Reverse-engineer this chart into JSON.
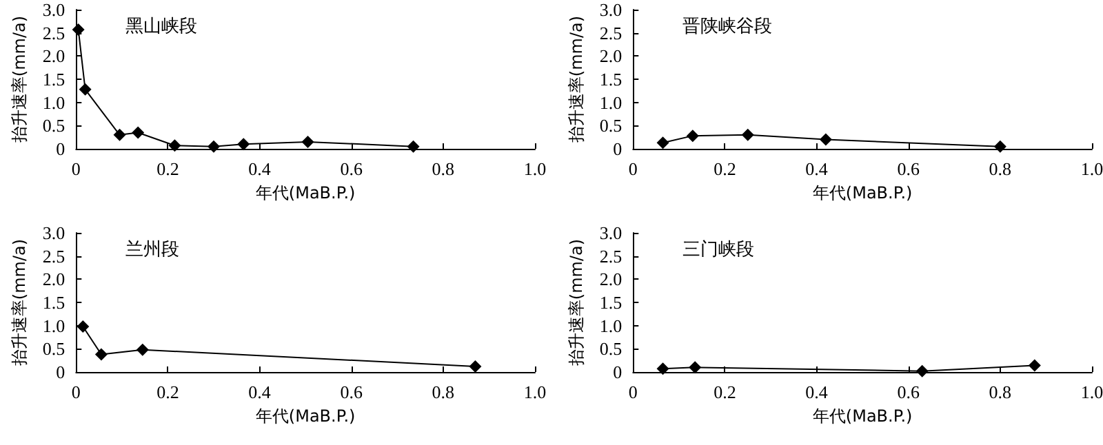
{
  "chart_data": [
    {
      "type": "line",
      "title": "黑山峡段",
      "xlabel": "年代(MaB.P.)",
      "ylabel": "抬升速率(mm/a)",
      "x": [
        0.005,
        0.02,
        0.095,
        0.135,
        0.215,
        0.3,
        0.365,
        0.505,
        0.735
      ],
      "values": [
        2.57,
        1.28,
        0.3,
        0.35,
        0.07,
        0.05,
        0.1,
        0.15,
        0.05
      ],
      "color": "#000000",
      "xlim": [
        0,
        1
      ],
      "xticks": [
        {
          "value": 0,
          "label": "0"
        },
        {
          "value": 0.2,
          "label": "0.2"
        },
        {
          "value": 0.4,
          "label": "0.4"
        },
        {
          "value": 0.6,
          "label": "0.6"
        },
        {
          "value": 0.8,
          "label": "0.8"
        },
        {
          "value": 1,
          "label": "1.0"
        }
      ],
      "ylim": [
        0,
        3
      ],
      "yticks": [
        {
          "value": 0,
          "label": "0"
        },
        {
          "value": 0.5,
          "label": "0.5"
        },
        {
          "value": 1,
          "label": "1.0"
        },
        {
          "value": 1.5,
          "label": "1.5"
        },
        {
          "value": 2,
          "label": "2.0"
        },
        {
          "value": 2.5,
          "label": "2.5"
        },
        {
          "value": 3,
          "label": "3.0"
        }
      ],
      "grid": false,
      "marker": "diamond",
      "line_style": "solid"
    },
    {
      "type": "line",
      "title": "晋陕峡谷段",
      "xlabel": "年代(MaB.P.)",
      "ylabel": "抬升速率(mm/a)",
      "x": [
        0.065,
        0.13,
        0.25,
        0.42,
        0.8
      ],
      "values": [
        0.13,
        0.28,
        0.3,
        0.2,
        0.05
      ],
      "color": "#000000",
      "xlim": [
        0,
        1
      ],
      "xticks": [
        {
          "value": 0,
          "label": "0"
        },
        {
          "value": 0.2,
          "label": "0.2"
        },
        {
          "value": 0.4,
          "label": "0.4"
        },
        {
          "value": 0.6,
          "label": "0.6"
        },
        {
          "value": 0.8,
          "label": "0.8"
        },
        {
          "value": 1,
          "label": "1.0"
        }
      ],
      "ylim": [
        0,
        3
      ],
      "yticks": [
        {
          "value": 0,
          "label": "0"
        },
        {
          "value": 0.5,
          "label": "0.5"
        },
        {
          "value": 1,
          "label": "1.0"
        },
        {
          "value": 1.5,
          "label": "1.5"
        },
        {
          "value": 2,
          "label": "2.0"
        },
        {
          "value": 2.5,
          "label": "2.5"
        },
        {
          "value": 3,
          "label": "3.0"
        }
      ],
      "grid": false,
      "marker": "diamond",
      "line_style": "solid"
    },
    {
      "type": "line",
      "title": "兰州段",
      "xlabel": "年代(MaB.P.)",
      "ylabel": "抬升速率(mm/a)",
      "x": [
        0.015,
        0.055,
        0.145,
        0.87
      ],
      "values": [
        0.98,
        0.38,
        0.48,
        0.12
      ],
      "color": "#000000",
      "xlim": [
        0,
        1
      ],
      "xticks": [
        {
          "value": 0,
          "label": "0"
        },
        {
          "value": 0.2,
          "label": "0.2"
        },
        {
          "value": 0.4,
          "label": "0.4"
        },
        {
          "value": 0.6,
          "label": "0.6"
        },
        {
          "value": 0.8,
          "label": "0.8"
        },
        {
          "value": 1,
          "label": "1.0"
        }
      ],
      "ylim": [
        0,
        3
      ],
      "yticks": [
        {
          "value": 0,
          "label": "0"
        },
        {
          "value": 0.5,
          "label": "0.5"
        },
        {
          "value": 1,
          "label": "1.0"
        },
        {
          "value": 1.5,
          "label": "1.5"
        },
        {
          "value": 2,
          "label": "2.0"
        },
        {
          "value": 2.5,
          "label": "2.5"
        },
        {
          "value": 3,
          "label": "3.0"
        }
      ],
      "grid": false,
      "marker": "diamond",
      "line_style": "solid"
    },
    {
      "type": "line",
      "title": "三门峡段",
      "xlabel": "年代(MaB.P.)",
      "ylabel": "抬升速率(mm/a)",
      "x": [
        0.065,
        0.135,
        0.63,
        0.875
      ],
      "values": [
        0.07,
        0.1,
        0.02,
        0.14
      ],
      "color": "#000000",
      "xlim": [
        0,
        1
      ],
      "xticks": [
        {
          "value": 0,
          "label": "0"
        },
        {
          "value": 0.2,
          "label": "0.2"
        },
        {
          "value": 0.4,
          "label": "0.4"
        },
        {
          "value": 0.6,
          "label": "0.6"
        },
        {
          "value": 0.8,
          "label": "0.8"
        },
        {
          "value": 1,
          "label": "1.0"
        }
      ],
      "ylim": [
        0,
        3
      ],
      "yticks": [
        {
          "value": 0,
          "label": "0"
        },
        {
          "value": 0.5,
          "label": "0.5"
        },
        {
          "value": 1,
          "label": "1.0"
        },
        {
          "value": 1.5,
          "label": "1.5"
        },
        {
          "value": 2,
          "label": "2.0"
        },
        {
          "value": 2.5,
          "label": "2.5"
        },
        {
          "value": 3,
          "label": "3.0"
        }
      ],
      "grid": false,
      "marker": "diamond",
      "line_style": "solid"
    }
  ]
}
